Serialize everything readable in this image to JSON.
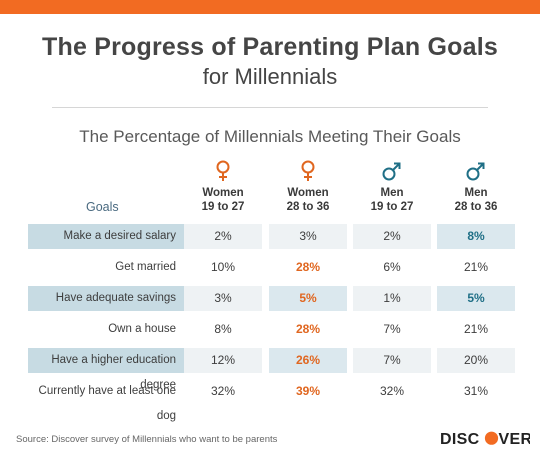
{
  "title_line1": "The Progress of Parenting Plan Goals",
  "title_line2": "for Millennials",
  "subtitle": "The Percentage of Millennials Meeting Their Goals",
  "goals_header": "Goals",
  "colors": {
    "accent": "#f26b22",
    "female": "#e0661f",
    "male": "#1f6f86",
    "shade": "#c7dbe3"
  },
  "chart_data": {
    "type": "table",
    "columns": [
      {
        "line1": "Women",
        "line2": "19 to 27",
        "icon": "female-symbol-icon"
      },
      {
        "line1": "Women",
        "line2": "28 to 36",
        "icon": "female-symbol-icon"
      },
      {
        "line1": "Men",
        "line2": "19 to 27",
        "icon": "male-symbol-icon"
      },
      {
        "line1": "Men",
        "line2": "28 to 36",
        "icon": "male-symbol-icon"
      }
    ],
    "rows": [
      {
        "label": "Make a desired salary",
        "values": [
          "2%",
          "3%",
          "2%",
          "8%"
        ],
        "highlight": [
          false,
          false,
          false,
          true
        ],
        "shaded": true
      },
      {
        "label": "Get married",
        "values": [
          "10%",
          "28%",
          "6%",
          "21%"
        ],
        "highlight": [
          false,
          true,
          false,
          false
        ],
        "shaded": false
      },
      {
        "label": "Have adequate savings",
        "values": [
          "3%",
          "5%",
          "1%",
          "5%"
        ],
        "highlight": [
          false,
          true,
          false,
          true
        ],
        "shaded": true
      },
      {
        "label": "Own a house",
        "values": [
          "8%",
          "28%",
          "7%",
          "21%"
        ],
        "highlight": [
          false,
          true,
          false,
          false
        ],
        "shaded": false
      },
      {
        "label": "Have a higher education degree",
        "values": [
          "12%",
          "26%",
          "7%",
          "20%"
        ],
        "highlight": [
          false,
          true,
          false,
          false
        ],
        "shaded": true
      },
      {
        "label": "Currently have at least one dog",
        "values": [
          "32%",
          "39%",
          "32%",
          "31%"
        ],
        "highlight": [
          false,
          true,
          false,
          false
        ],
        "shaded": false
      }
    ]
  },
  "source": "Source: Discover survey of Millennials who want to be parents",
  "brand": "DISCOVER"
}
